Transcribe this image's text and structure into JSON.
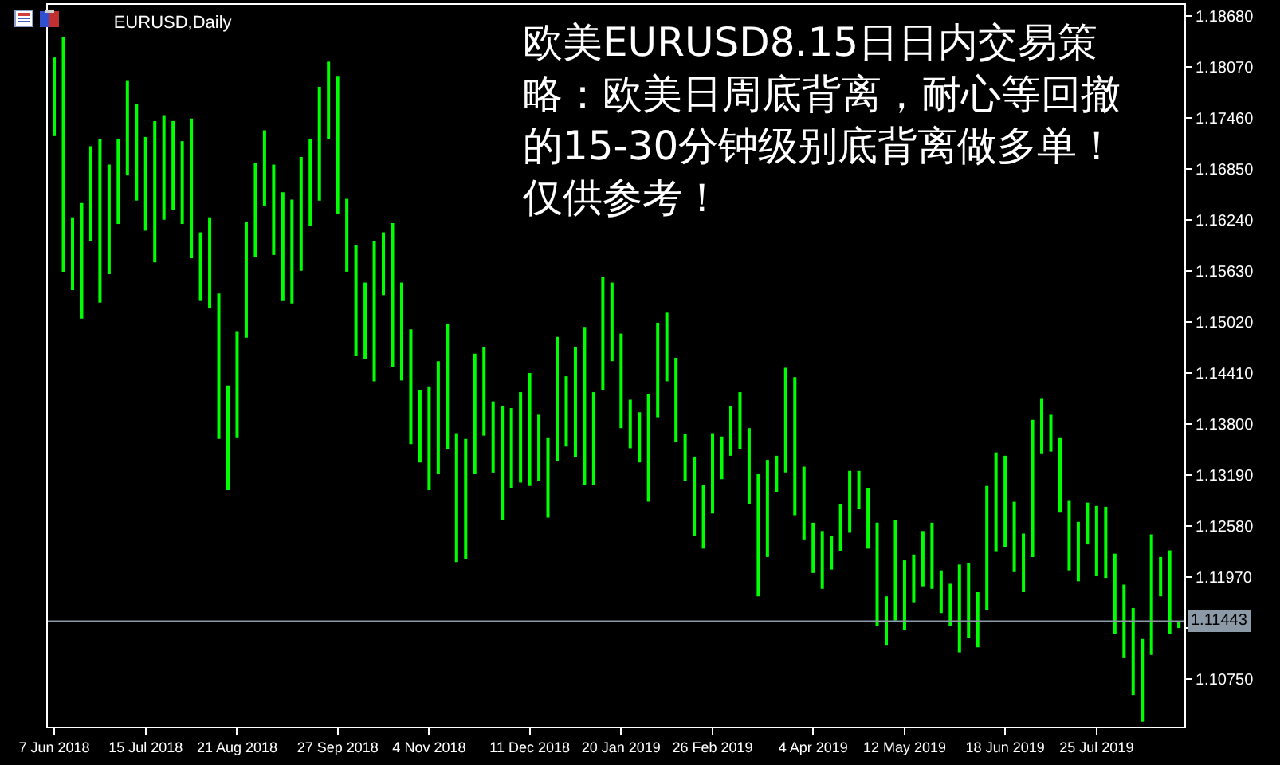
{
  "chart_data": {
    "type": "bar",
    "title": "EURUSD,Daily",
    "annotations": [
      "欧美EURUSD8.15日日内交易策略：欧美日周底背离，耐心等回撤的15-30分钟级别底背离做多单！仅供参考！"
    ],
    "categories": [
      "7 Jun 2018",
      null,
      null,
      null,
      null,
      null,
      null,
      null,
      null,
      null,
      "15 Jul 2018",
      null,
      null,
      null,
      null,
      null,
      null,
      null,
      null,
      null,
      "21 Aug 2018",
      null,
      null,
      null,
      null,
      null,
      null,
      null,
      null,
      null,
      null,
      "27 Sep 2018",
      null,
      null,
      null,
      null,
      null,
      null,
      null,
      null,
      null,
      "4 Nov 2018",
      null,
      null,
      null,
      null,
      null,
      null,
      null,
      null,
      null,
      null,
      "11 Dec 2018",
      null,
      null,
      null,
      null,
      null,
      null,
      null,
      null,
      null,
      "20 Jan 2019",
      null,
      null,
      null,
      null,
      null,
      null,
      null,
      null,
      null,
      "26 Feb 2019",
      null,
      null,
      null,
      null,
      null,
      null,
      null,
      null,
      null,
      null,
      "4 Apr 2019",
      null,
      null,
      null,
      null,
      null,
      null,
      null,
      null,
      null,
      "12 May 2019",
      null,
      null,
      null,
      null,
      null,
      null,
      null,
      null,
      null,
      null,
      "18 Jun 2019",
      null,
      null,
      null,
      null,
      null,
      null,
      null,
      null,
      null,
      "25 Jul 2019",
      null,
      null,
      null,
      null,
      null,
      null,
      null,
      null,
      null
    ],
    "series": [
      {
        "color": "#00ff00",
        "base": [
          1.1724,
          1.1562,
          1.154,
          1.1506,
          1.1599,
          1.1525,
          1.1559,
          1.1619,
          1.1677,
          1.1647,
          1.1611,
          1.1573,
          1.1624,
          1.1636,
          1.1619,
          1.1578,
          1.1527,
          1.1518,
          1.1362,
          1.1301,
          1.1363,
          1.1483,
          1.1579,
          1.1641,
          1.1582,
          1.1527,
          1.1524,
          1.1563,
          1.1617,
          1.1647,
          1.172,
          1.1631,
          1.1562,
          1.1461,
          1.1458,
          1.1431,
          1.1534,
          1.1448,
          1.1432,
          1.1356,
          1.1334,
          1.1301,
          1.132,
          1.135,
          1.1215,
          1.1219,
          1.132,
          1.1366,
          1.1322,
          1.1265,
          1.1303,
          1.131,
          1.1306,
          1.1312,
          1.1268,
          1.1336,
          1.1353,
          1.1341,
          1.1307,
          1.1307,
          1.1421,
          1.1455,
          1.1375,
          1.1351,
          1.1334,
          1.1287,
          1.1388,
          1.1431,
          1.1358,
          1.1312,
          1.1246,
          1.1231,
          1.1273,
          1.1314,
          1.1342,
          1.135,
          1.1284,
          1.1174,
          1.1221,
          1.1298,
          1.1322,
          1.1271,
          1.1241,
          1.1202,
          1.1183,
          1.1206,
          1.1228,
          1.125,
          1.1278,
          1.1231,
          1.1138,
          1.1115,
          1.1145,
          1.1134,
          1.1166,
          1.1186,
          1.1183,
          1.1154,
          1.1138,
          1.1107,
          1.1124,
          1.1113,
          1.1157,
          1.1227,
          1.1233,
          1.1203,
          1.1179,
          1.1221,
          1.1344,
          1.1347,
          1.1274,
          1.1205,
          1.1192,
          1.1236,
          1.1198,
          1.1196,
          1.1129,
          1.11,
          1.1056,
          1.1024,
          1.1104,
          1.1174,
          1.1129,
          1.1136
        ],
        "values": [
          0.0094,
          0.028,
          0.0087,
          0.0138,
          0.0113,
          0.0195,
          0.0131,
          0.0101,
          0.0113,
          0.0115,
          0.0112,
          0.0169,
          0.0125,
          0.0106,
          0.0099,
          0.0167,
          0.0082,
          0.0109,
          0.0174,
          0.0125,
          0.0128,
          0.0138,
          0.0113,
          0.009,
          0.0108,
          0.013,
          0.0124,
          0.0136,
          0.0103,
          0.0136,
          0.0093,
          0.0165,
          0.0087,
          0.0133,
          0.0091,
          0.0168,
          0.0075,
          0.0172,
          0.0117,
          0.0137,
          0.0086,
          0.0123,
          0.0135,
          0.0149,
          0.0154,
          0.0143,
          0.0144,
          0.0106,
          0.0085,
          0.0136,
          0.0096,
          0.0108,
          0.0135,
          0.0079,
          0.0095,
          0.0148,
          0.0084,
          0.0131,
          0.0189,
          0.0111,
          0.0135,
          0.0094,
          0.0113,
          0.0058,
          0.006,
          0.0129,
          0.0113,
          0.0082,
          0.0101,
          0.0056,
          0.0095,
          0.0076,
          0.0096,
          0.0051,
          0.0059,
          0.0068,
          0.0091,
          0.0146,
          0.0116,
          0.0044,
          0.0125,
          0.0165,
          0.0088,
          0.006,
          0.0069,
          0.004,
          0.0056,
          0.0074,
          0.0046,
          0.0072,
          0.0124,
          0.0059,
          0.012,
          0.0083,
          0.0058,
          0.0066,
          0.0079,
          0.0051,
          0.0051,
          0.0105,
          0.009,
          0.0066,
          0.0149,
          0.0119,
          0.0109,
          0.0084,
          0.007,
          0.0164,
          0.0066,
          0.0044,
          0.0089,
          0.0083,
          0.0071,
          0.005,
          0.0084,
          0.0085,
          0.0096,
          0.0088,
          0.0104,
          0.0099,
          0.0144,
          0.0047,
          0.01,
          0.0007
        ]
      }
    ],
    "ylim": [
      1.1018,
      1.1881
    ],
    "yticks": [
      {
        "value": 1.1868,
        "label": "1.18680"
      },
      {
        "value": 1.1807,
        "label": "1.18070"
      },
      {
        "value": 1.1746,
        "label": "1.17460"
      },
      {
        "value": 1.1685,
        "label": "1.16850"
      },
      {
        "value": 1.1624,
        "label": "1.16240"
      },
      {
        "value": 1.1563,
        "label": "1.15630"
      },
      {
        "value": 1.1502,
        "label": "1.15020"
      },
      {
        "value": 1.1441,
        "label": "1.14410"
      },
      {
        "value": 1.138,
        "label": "1.13800"
      },
      {
        "value": 1.1319,
        "label": "1.13190"
      },
      {
        "value": 1.1258,
        "label": "1.12580"
      },
      {
        "value": 1.1197,
        "label": "1.11970"
      },
      {
        "value": 1.1136,
        "label": null
      },
      {
        "value": 1.1075,
        "label": "1.10750"
      }
    ],
    "ref_lines": [
      {
        "axis": "y",
        "value": 1.11443,
        "label": "1.11443",
        "color": "#8c9aa8"
      }
    ],
    "grid": false
  }
}
